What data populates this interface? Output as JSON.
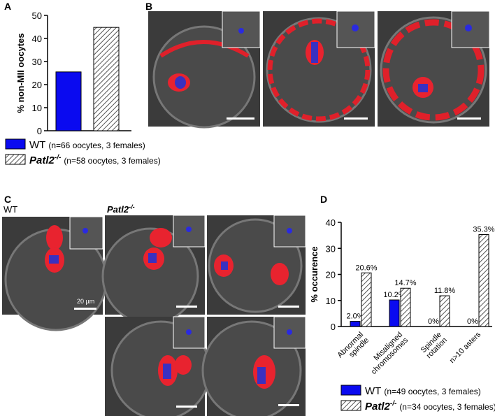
{
  "figure": {
    "panel_b": "B",
    "panel_c": "C",
    "wt_label": "WT",
    "mutant_label": "Patl2",
    "mutant_superscript": "-/-",
    "scale_bar": "20 µm"
  },
  "chart_data": [
    {
      "type": "bar",
      "label": "A",
      "ylabel": "% non-MII oocytes",
      "categories": [
        null
      ],
      "series": [
        {
          "name": "WT",
          "sample": "(n=66 oocytes, 3 females)",
          "color": "#0a0af0",
          "values": [
            25.5
          ]
        },
        {
          "name": "Patl2",
          "superscript": "-/-",
          "sample": "(n=58 oocytes, 3 females)",
          "color": "#ffffff",
          "hatch": true,
          "values": [
            44.8
          ]
        }
      ],
      "ylim": [
        0,
        50
      ],
      "yticks": [
        0,
        10,
        20,
        30,
        40,
        50
      ]
    },
    {
      "type": "bar",
      "label": "D",
      "ylabel": "% occurence",
      "categories": [
        [
          "Abnormal",
          "spindle"
        ],
        [
          "Misaligned",
          "chromosomes"
        ],
        [
          "Spindle",
          "rotation"
        ],
        [
          "n>10 asters"
        ]
      ],
      "series": [
        {
          "name": "WT",
          "sample": "(n=49 oocytes, 3 females)",
          "color": "#0a0af0",
          "values": [
            2.0,
            10.2,
            0,
            0
          ],
          "value_labels": [
            "2.0%",
            "10.2%",
            "0%",
            "0%"
          ]
        },
        {
          "name": "Patl2",
          "superscript": "-/-",
          "sample": "(n=34 oocytes, 3 females)",
          "color": "#ffffff",
          "hatch": true,
          "values": [
            20.6,
            14.7,
            11.8,
            35.3
          ],
          "value_labels": [
            "20.6%",
            "14.7%",
            "11.8%",
            "35.3%"
          ]
        }
      ],
      "ylim": [
        0,
        40
      ],
      "yticks": [
        0,
        10,
        20,
        30,
        40
      ]
    }
  ]
}
